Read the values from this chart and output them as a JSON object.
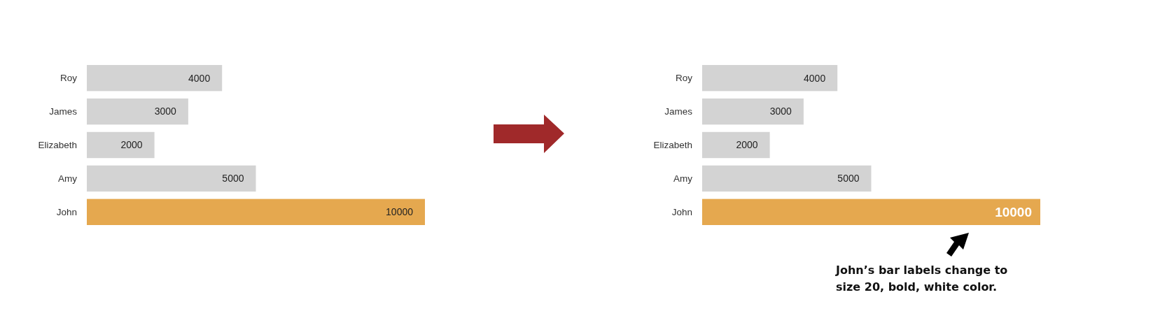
{
  "chart_data": [
    {
      "type": "bar",
      "orientation": "horizontal",
      "categories": [
        "Roy",
        "James",
        "Elizabeth",
        "Amy",
        "John"
      ],
      "values": [
        4000,
        3000,
        2000,
        5000,
        10000
      ],
      "colors": [
        "#d3d3d3",
        "#d3d3d3",
        "#d3d3d3",
        "#d3d3d3",
        "#e5a84f"
      ],
      "data_labels": true
    },
    {
      "type": "bar",
      "orientation": "horizontal",
      "categories": [
        "Roy",
        "James",
        "Elizabeth",
        "Amy",
        "John"
      ],
      "values": [
        4000,
        3000,
        2000,
        5000,
        10000
      ],
      "colors": [
        "#d3d3d3",
        "#d3d3d3",
        "#d3d3d3",
        "#d3d3d3",
        "#e5a84f"
      ],
      "data_labels": true,
      "annotations": [
        "John’s bar labels change to size 20, bold, white color."
      ]
    }
  ]
}
